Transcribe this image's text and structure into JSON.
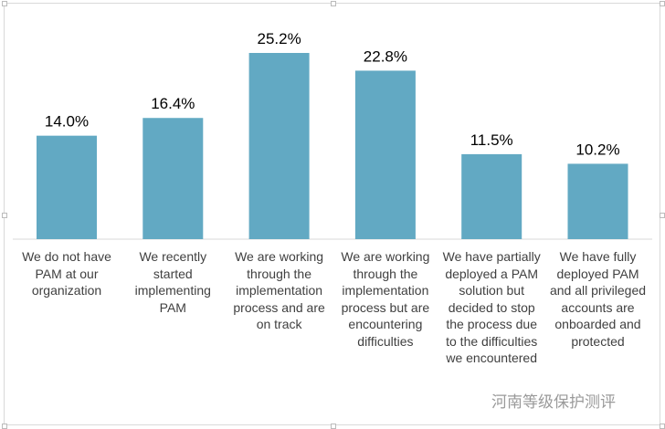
{
  "chart_data": {
    "type": "bar",
    "categories": [
      "We do not have PAM at our organization",
      "We recently started implementing PAM",
      "We are working through the implementation process and are on track",
      "We are working through the implementation process but are encountering difficulties",
      "We have partially deployed a PAM solution but decided to stop the process due to the difficulties we encountered",
      "We have fully deployed PAM and all privileged accounts are onboarded and protected"
    ],
    "values": [
      14.0,
      16.4,
      25.2,
      22.8,
      11.5,
      10.2
    ],
    "data_labels": [
      "14.0%",
      "16.4%",
      "25.2%",
      "22.8%",
      "11.5%",
      "10.2%"
    ],
    "title": "",
    "xlabel": "",
    "ylabel": "",
    "ylim": [
      0,
      26
    ],
    "grid": false,
    "bar_color": "#62a9c3"
  },
  "watermark": "河南等级保护测评"
}
